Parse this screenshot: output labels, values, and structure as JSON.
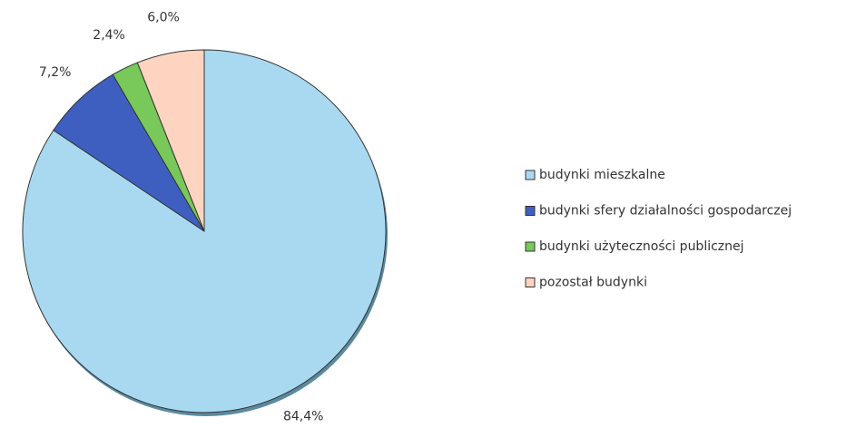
{
  "chart_data": {
    "type": "pie",
    "categories": [
      "budynki mieszkalne",
      "budynki sfery działalności gospodarczej",
      "budynki użyteczności publicznej",
      "pozostał budynki"
    ],
    "values": [
      84.4,
      7.2,
      2.4,
      6.0
    ],
    "value_labels": [
      "84,4%",
      "7,2%",
      "2,4%",
      "6,0%"
    ],
    "colors": [
      "#a9d9f0",
      "#3f5fc0",
      "#78c85a",
      "#fcd4c0"
    ],
    "legend": "right"
  }
}
